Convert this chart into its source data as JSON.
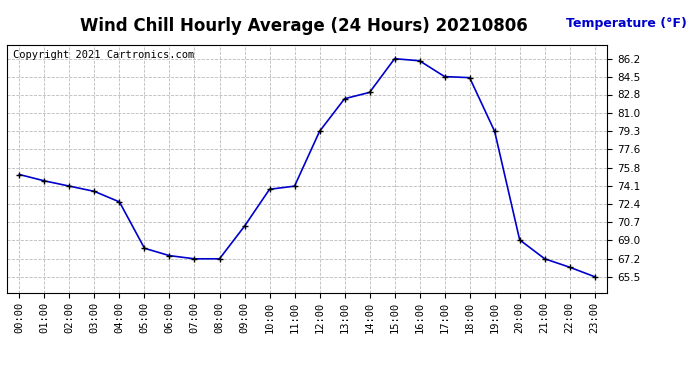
{
  "title": "Wind Chill Hourly Average (24 Hours) 20210806",
  "copyright_text": "Copyright 2021 Cartronics.com",
  "ylabel": "Temperature (°F)",
  "hours": [
    "00:00",
    "01:00",
    "02:00",
    "03:00",
    "04:00",
    "05:00",
    "06:00",
    "07:00",
    "08:00",
    "09:00",
    "10:00",
    "11:00",
    "12:00",
    "13:00",
    "14:00",
    "15:00",
    "16:00",
    "17:00",
    "18:00",
    "19:00",
    "20:00",
    "21:00",
    "22:00",
    "23:00"
  ],
  "values": [
    75.2,
    74.6,
    74.1,
    73.6,
    72.6,
    68.2,
    67.5,
    67.2,
    67.2,
    70.3,
    73.8,
    74.1,
    79.3,
    82.4,
    83.0,
    86.2,
    86.0,
    84.5,
    84.4,
    79.3,
    69.0,
    67.2,
    66.4,
    65.5
  ],
  "line_color": "#0000CC",
  "marker": "+",
  "marker_color": "#000000",
  "background_color": "#ffffff",
  "grid_color": "#bbbbbb",
  "title_color": "#000000",
  "ylabel_color": "#0000CC",
  "copyright_color": "#000000",
  "ylim_min": 64.0,
  "ylim_max": 87.5,
  "yticks": [
    65.5,
    67.2,
    69.0,
    70.7,
    72.4,
    74.1,
    75.8,
    77.6,
    79.3,
    81.0,
    82.8,
    84.5,
    86.2
  ],
  "title_fontsize": 12,
  "label_fontsize": 9,
  "tick_fontsize": 7.5,
  "copyright_fontsize": 7.5
}
